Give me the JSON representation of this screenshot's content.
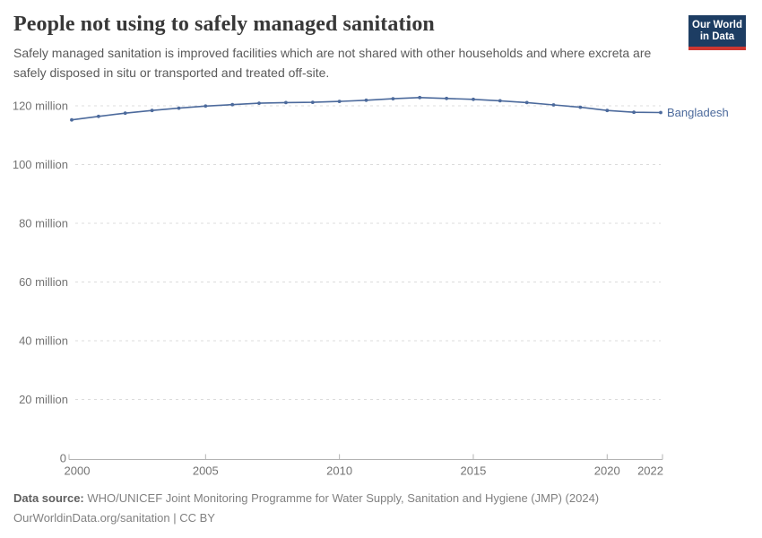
{
  "header": {
    "title": "People not using to safely managed sanitation",
    "subtitle": "Safely managed sanitation is improved facilities which are not shared with other households and where excreta are safely disposed in situ or transported and treated off-site.",
    "logo": {
      "line1": "Our World",
      "line2": "in Data",
      "bg_color": "#1d3d63",
      "accent_color": "#cd3731"
    }
  },
  "chart_data": {
    "type": "line",
    "title": "People not using to safely managed sanitation",
    "unit": "million people",
    "grid": "horizontal dashed",
    "legend_position": "end-of-line label",
    "x": [
      2000,
      2001,
      2002,
      2003,
      2004,
      2005,
      2006,
      2007,
      2008,
      2009,
      2010,
      2011,
      2012,
      2013,
      2014,
      2015,
      2016,
      2017,
      2018,
      2019,
      2020,
      2021,
      2022
    ],
    "series": [
      {
        "name": "Bangladesh",
        "color": "#4c6a9c",
        "values": [
          115.2,
          116.4,
          117.5,
          118.4,
          119.2,
          119.9,
          120.4,
          120.9,
          121.1,
          121.2,
          121.5,
          121.9,
          122.4,
          122.8,
          122.5,
          122.2,
          121.7,
          121.1,
          120.3,
          119.5,
          118.4,
          117.8,
          117.7
        ]
      }
    ],
    "xlim": [
      2000,
      2022
    ],
    "ylim": [
      0,
      126
    ],
    "yticks": [
      {
        "value": 0,
        "label": "0"
      },
      {
        "value": 20,
        "label": "20 million"
      },
      {
        "value": 40,
        "label": "40 million"
      },
      {
        "value": 60,
        "label": "60 million"
      },
      {
        "value": 80,
        "label": "80 million"
      },
      {
        "value": 100,
        "label": "100 million"
      },
      {
        "value": 120,
        "label": "120 million"
      }
    ],
    "xticks": [
      {
        "year": 2000,
        "label": "2000"
      },
      {
        "year": 2005,
        "label": "2005"
      },
      {
        "year": 2010,
        "label": "2010"
      },
      {
        "year": 2015,
        "label": "2015"
      },
      {
        "year": 2020,
        "label": "2020"
      },
      {
        "year": 2022,
        "label": "2022"
      }
    ]
  },
  "footer": {
    "datasource_label": "Data source:",
    "datasource_text": "WHO/UNICEF Joint Monitoring Programme for Water Supply, Sanitation and Hygiene (JMP) (2024)",
    "license_text": "OurWorldinData.org/sanitation | CC BY"
  }
}
